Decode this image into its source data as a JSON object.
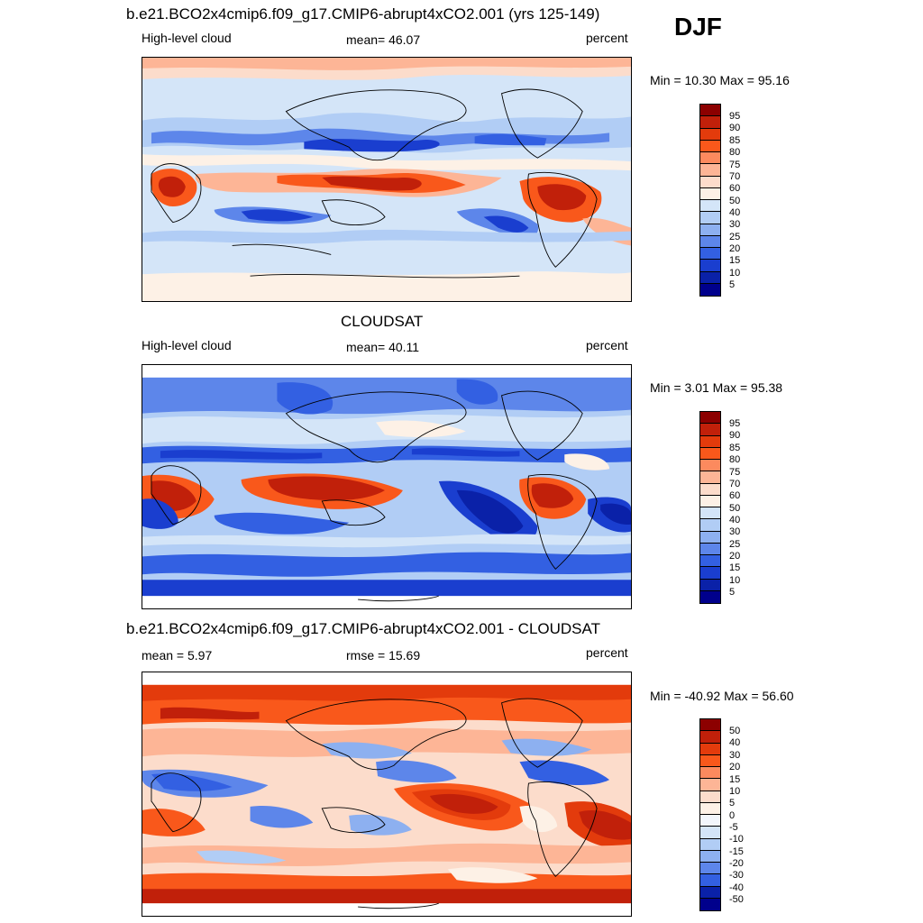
{
  "season": "DJF",
  "panels": [
    {
      "title": "b.e21.BCO2x4cmip6.f09_g17.CMIP6-abrupt4xCO2.001 (yrs 125-149)",
      "left_label": "High-level cloud",
      "center_label": "mean=  46.07",
      "right_label": "percent",
      "minmax": "Min =  10.30 Max =  95.16",
      "colorbar_ticks": [
        "95",
        "90",
        "85",
        "80",
        "75",
        "70",
        "60",
        "50",
        "40",
        "30",
        "25",
        "20",
        "15",
        "10",
        "5"
      ],
      "colorbar_colors": [
        "#8c0000",
        "#c1200a",
        "#e33b0c",
        "#f9581b",
        "#fc8a5e",
        "#fdb596",
        "#fcdccb",
        "#fdf1e6",
        "#d4e5f8",
        "#b1cdf5",
        "#8db0f0",
        "#5d86ea",
        "#3360e2",
        "#1a3ecf",
        "#0a21a8",
        "#00008c"
      ]
    },
    {
      "title": "CLOUDSAT",
      "left_label": "High-level cloud",
      "center_label": "mean=  40.11",
      "right_label": "percent",
      "minmax": "Min =   3.01 Max =  95.38",
      "colorbar_ticks": [
        "95",
        "90",
        "85",
        "80",
        "75",
        "70",
        "60",
        "50",
        "40",
        "30",
        "25",
        "20",
        "15",
        "10",
        "5"
      ],
      "colorbar_colors": [
        "#8c0000",
        "#c1200a",
        "#e33b0c",
        "#f9581b",
        "#fc8a5e",
        "#fdb596",
        "#fcdccb",
        "#fdf1e6",
        "#d4e5f8",
        "#b1cdf5",
        "#8db0f0",
        "#5d86ea",
        "#3360e2",
        "#1a3ecf",
        "#0a21a8",
        "#00008c"
      ]
    },
    {
      "title": "b.e21.BCO2x4cmip6.f09_g17.CMIP6-abrupt4xCO2.001 - CLOUDSAT",
      "left_label": "mean =   5.97",
      "center_label": "rmse =  15.69",
      "right_label": "percent",
      "minmax": "Min = -40.92 Max =  56.60",
      "colorbar_ticks": [
        "50",
        "40",
        "30",
        "20",
        "15",
        "10",
        "5",
        "0",
        "-5",
        "-10",
        "-15",
        "-20",
        "-30",
        "-40",
        "-50"
      ],
      "colorbar_colors": [
        "#8c0000",
        "#c1200a",
        "#e33b0c",
        "#f9581b",
        "#fc8a5e",
        "#fdb596",
        "#fcdccb",
        "#fdf1e6",
        "#f2f6fc",
        "#d4e5f8",
        "#b1cdf5",
        "#8db0f0",
        "#5d86ea",
        "#3360e2",
        "#0a21a8",
        "#00008c"
      ]
    }
  ]
}
